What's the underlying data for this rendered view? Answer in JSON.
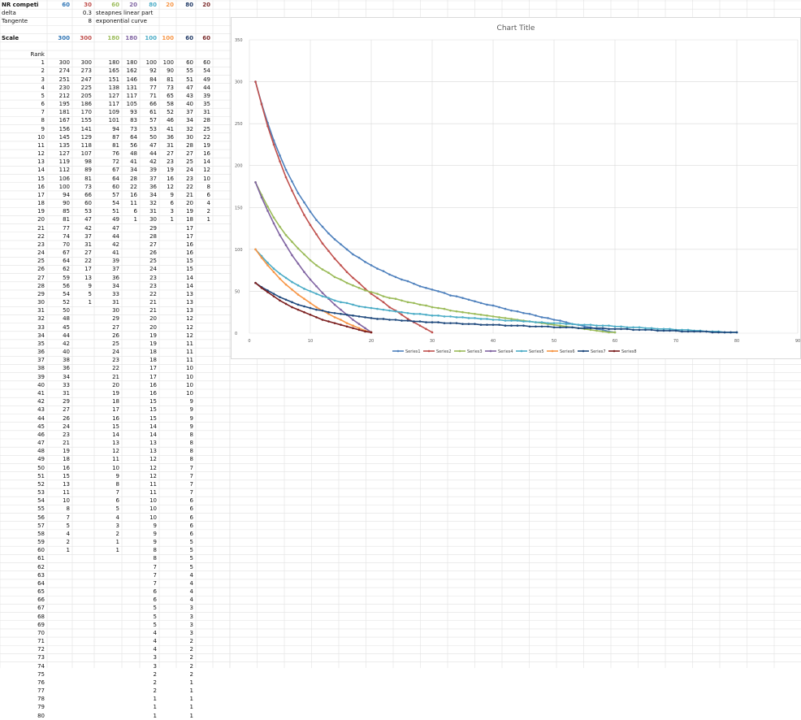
{
  "sheet": {
    "header_rows": [
      {
        "label": "NR competi",
        "values": [
          "60",
          "30",
          "60",
          "20",
          "80",
          "20",
          "80",
          "20"
        ],
        "bold": true
      },
      {
        "label": "delta",
        "values": [
          "",
          "0.3",
          "steapnes linear part",
          "",
          "",
          "",
          "",
          ""
        ],
        "bold": false
      },
      {
        "label": "Tangente",
        "values": [
          "",
          "8",
          "exponential curve",
          "",
          "",
          "",
          "",
          ""
        ],
        "bold": false
      },
      {
        "label": "Scale",
        "values": [
          "300",
          "300",
          "180",
          "180",
          "100",
          "100",
          "60",
          "60"
        ],
        "bold": true
      }
    ],
    "rank_label": "Rank",
    "column_colors": [
      "#2f75b5",
      "#c0504d",
      "#9bbb59",
      "#8064a2",
      "#4bacc6",
      "#f79646",
      "#1f3864",
      "#7b2b2b"
    ],
    "ranks": [
      "1",
      "2",
      "3",
      "4",
      "5",
      "6",
      "7",
      "8",
      "9",
      "10",
      "11",
      "12",
      "13",
      "14",
      "15",
      "16",
      "17",
      "18",
      "19",
      "20",
      "21",
      "22",
      "23",
      "24",
      "25",
      "26",
      "27",
      "28",
      "29",
      "30",
      "31",
      "32",
      "33",
      "34",
      "35",
      "36",
      "37",
      "38",
      "39",
      "40",
      "41",
      "42",
      "43",
      "44",
      "45",
      "46",
      "47",
      "48",
      "49",
      "50",
      "51",
      "52",
      "53",
      "54",
      "55",
      "56",
      "57",
      "58",
      "59",
      "60",
      "61",
      "62",
      "63",
      "64",
      "65",
      "66",
      "67",
      "68",
      "69",
      "70",
      "71",
      "72",
      "73",
      "74",
      "75",
      "76",
      "77",
      "78",
      "79",
      "80"
    ],
    "columns": [
      [
        "300",
        "274",
        "251",
        "230",
        "212",
        "195",
        "181",
        "167",
        "156",
        "145",
        "135",
        "127",
        "119",
        "112",
        "106",
        "100",
        "94",
        "90",
        "85",
        "81",
        "77",
        "74",
        "70",
        "67",
        "64",
        "62",
        "59",
        "56",
        "54",
        "52",
        "50",
        "48",
        "45",
        "44",
        "42",
        "40",
        "38",
        "36",
        "34",
        "33",
        "31",
        "29",
        "27",
        "26",
        "24",
        "23",
        "21",
        "19",
        "18",
        "16",
        "15",
        "13",
        "11",
        "10",
        "8",
        "7",
        "5",
        "4",
        "2",
        "1"
      ],
      [
        "300",
        "273",
        "247",
        "225",
        "205",
        "186",
        "170",
        "155",
        "141",
        "129",
        "118",
        "107",
        "98",
        "89",
        "81",
        "73",
        "66",
        "60",
        "53",
        "47",
        "42",
        "37",
        "31",
        "27",
        "22",
        "17",
        "13",
        "9",
        "5",
        "1"
      ],
      [
        "180",
        "165",
        "151",
        "138",
        "127",
        "117",
        "109",
        "101",
        "94",
        "87",
        "81",
        "76",
        "72",
        "67",
        "64",
        "60",
        "57",
        "54",
        "51",
        "49",
        "47",
        "44",
        "42",
        "41",
        "39",
        "37",
        "36",
        "34",
        "33",
        "31",
        "30",
        "29",
        "27",
        "26",
        "25",
        "24",
        "23",
        "22",
        "21",
        "20",
        "19",
        "18",
        "17",
        "16",
        "15",
        "14",
        "13",
        "12",
        "11",
        "10",
        "9",
        "8",
        "7",
        "6",
        "5",
        "4",
        "3",
        "2",
        "1",
        "1"
      ],
      [
        "180",
        "162",
        "146",
        "131",
        "117",
        "105",
        "93",
        "83",
        "73",
        "64",
        "56",
        "48",
        "41",
        "34",
        "28",
        "22",
        "16",
        "11",
        "6",
        "1"
      ],
      [
        "100",
        "92",
        "84",
        "77",
        "71",
        "66",
        "61",
        "57",
        "53",
        "50",
        "47",
        "44",
        "42",
        "39",
        "37",
        "36",
        "34",
        "32",
        "31",
        "30",
        "29",
        "28",
        "27",
        "26",
        "25",
        "24",
        "23",
        "23",
        "22",
        "21",
        "21",
        "20",
        "20",
        "19",
        "19",
        "18",
        "18",
        "17",
        "17",
        "16",
        "16",
        "15",
        "15",
        "15",
        "14",
        "14",
        "13",
        "13",
        "12",
        "12",
        "12",
        "11",
        "11",
        "10",
        "10",
        "10",
        "9",
        "9",
        "9",
        "8",
        "8",
        "7",
        "7",
        "7",
        "6",
        "6",
        "5",
        "5",
        "5",
        "4",
        "4",
        "4",
        "3",
        "3",
        "2",
        "2",
        "2",
        "1",
        "1",
        "1"
      ],
      [
        "100",
        "90",
        "81",
        "73",
        "65",
        "58",
        "52",
        "46",
        "41",
        "36",
        "31",
        "27",
        "23",
        "19",
        "16",
        "12",
        "9",
        "6",
        "3",
        "1"
      ],
      [
        "60",
        "55",
        "51",
        "47",
        "43",
        "40",
        "37",
        "34",
        "32",
        "30",
        "28",
        "27",
        "25",
        "24",
        "23",
        "22",
        "21",
        "20",
        "19",
        "18",
        "17",
        "17",
        "16",
        "16",
        "15",
        "15",
        "14",
        "14",
        "13",
        "13",
        "13",
        "12",
        "12",
        "12",
        "11",
        "11",
        "11",
        "10",
        "10",
        "10",
        "10",
        "9",
        "9",
        "9",
        "9",
        "8",
        "8",
        "8",
        "8",
        "7",
        "7",
        "7",
        "7",
        "6",
        "6",
        "6",
        "6",
        "6",
        "5",
        "5",
        "5",
        "5",
        "4",
        "4",
        "4",
        "4",
        "3",
        "3",
        "3",
        "3",
        "2",
        "2",
        "2",
        "2",
        "2",
        "1",
        "1",
        "1",
        "1",
        "1"
      ],
      [
        "60",
        "54",
        "49",
        "44",
        "39",
        "35",
        "31",
        "28",
        "25",
        "22",
        "19",
        "16",
        "14",
        "12",
        "10",
        "8",
        "6",
        "4",
        "2",
        "1"
      ]
    ]
  },
  "chart_data": {
    "type": "line",
    "title": "Chart Title",
    "xlabel": "",
    "ylabel": "",
    "xlim": [
      0,
      90
    ],
    "ylim": [
      0,
      350
    ],
    "x_ticks": [
      "0",
      "10",
      "20",
      "30",
      "40",
      "50",
      "60",
      "70",
      "80",
      "90"
    ],
    "y_ticks": [
      "0",
      "50",
      "100",
      "150",
      "200",
      "250",
      "300",
      "350"
    ],
    "grid": true,
    "legend_position": "bottom",
    "series": [
      {
        "name": "Series1",
        "color": "#4f81bd",
        "values": [
          300,
          274,
          251,
          230,
          212,
          195,
          181,
          167,
          156,
          145,
          135,
          127,
          119,
          112,
          106,
          100,
          94,
          90,
          85,
          81,
          77,
          74,
          70,
          67,
          64,
          62,
          59,
          56,
          54,
          52,
          50,
          48,
          45,
          44,
          42,
          40,
          38,
          36,
          34,
          33,
          31,
          29,
          27,
          26,
          24,
          23,
          21,
          19,
          18,
          16,
          15,
          13,
          11,
          10,
          8,
          7,
          5,
          4,
          2,
          1
        ]
      },
      {
        "name": "Series2",
        "color": "#c0504d",
        "values": [
          300,
          273,
          247,
          225,
          205,
          186,
          170,
          155,
          141,
          129,
          118,
          107,
          98,
          89,
          81,
          73,
          66,
          60,
          53,
          47,
          42,
          37,
          31,
          27,
          22,
          17,
          13,
          9,
          5,
          1
        ]
      },
      {
        "name": "Series3",
        "color": "#9bbb59",
        "values": [
          180,
          165,
          151,
          138,
          127,
          117,
          109,
          101,
          94,
          87,
          81,
          76,
          72,
          67,
          64,
          60,
          57,
          54,
          51,
          49,
          47,
          44,
          42,
          41,
          39,
          37,
          36,
          34,
          33,
          31,
          30,
          29,
          27,
          26,
          25,
          24,
          23,
          22,
          21,
          20,
          19,
          18,
          17,
          16,
          15,
          14,
          13,
          12,
          11,
          10,
          9,
          8,
          7,
          6,
          5,
          4,
          3,
          2,
          1,
          1
        ]
      },
      {
        "name": "Series4",
        "color": "#8064a2",
        "values": [
          180,
          162,
          146,
          131,
          117,
          105,
          93,
          83,
          73,
          64,
          56,
          48,
          41,
          34,
          28,
          22,
          16,
          11,
          6,
          1
        ]
      },
      {
        "name": "Series5",
        "color": "#4bacc6",
        "values": [
          100,
          92,
          84,
          77,
          71,
          66,
          61,
          57,
          53,
          50,
          47,
          44,
          42,
          39,
          37,
          36,
          34,
          32,
          31,
          30,
          29,
          28,
          27,
          26,
          25,
          24,
          23,
          23,
          22,
          21,
          21,
          20,
          20,
          19,
          19,
          18,
          18,
          17,
          17,
          16,
          16,
          15,
          15,
          15,
          14,
          14,
          13,
          13,
          12,
          12,
          12,
          11,
          11,
          10,
          10,
          10,
          9,
          9,
          9,
          8,
          8,
          7,
          7,
          7,
          6,
          6,
          5,
          5,
          5,
          4,
          4,
          4,
          3,
          3,
          2,
          2,
          2,
          1,
          1,
          1
        ]
      },
      {
        "name": "Series6",
        "color": "#f79646",
        "values": [
          100,
          90,
          81,
          73,
          65,
          58,
          52,
          46,
          41,
          36,
          31,
          27,
          23,
          19,
          16,
          12,
          9,
          6,
          3,
          1
        ]
      },
      {
        "name": "Series7",
        "color": "#1f497d",
        "values": [
          60,
          55,
          51,
          47,
          43,
          40,
          37,
          34,
          32,
          30,
          28,
          27,
          25,
          24,
          23,
          22,
          21,
          20,
          19,
          18,
          17,
          17,
          16,
          16,
          15,
          15,
          14,
          14,
          13,
          13,
          13,
          12,
          12,
          12,
          11,
          11,
          11,
          10,
          10,
          10,
          10,
          9,
          9,
          9,
          9,
          8,
          8,
          8,
          8,
          7,
          7,
          7,
          7,
          6,
          6,
          6,
          6,
          6,
          5,
          5,
          5,
          5,
          4,
          4,
          4,
          4,
          3,
          3,
          3,
          3,
          2,
          2,
          2,
          2,
          2,
          1,
          1,
          1,
          1,
          1
        ]
      },
      {
        "name": "Series8",
        "color": "#7b1f1f",
        "values": [
          60,
          54,
          49,
          44,
          39,
          35,
          31,
          28,
          25,
          22,
          19,
          16,
          14,
          12,
          10,
          8,
          6,
          4,
          2,
          1
        ]
      }
    ]
  }
}
